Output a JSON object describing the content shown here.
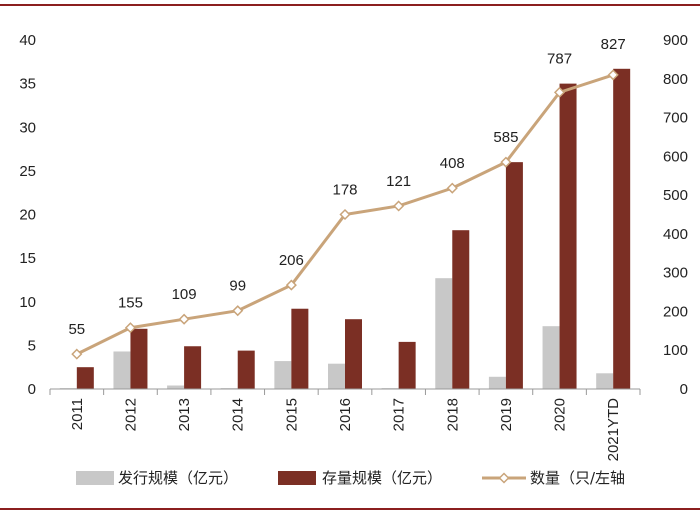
{
  "chart_data": {
    "type": "bar",
    "categories": [
      "2011",
      "2012",
      "2013",
      "2014",
      "2015",
      "2016",
      "2017",
      "2018",
      "2019",
      "2020",
      "2021YTD"
    ],
    "series": [
      {
        "name": "发行规模（亿元）",
        "type": "bar",
        "axis": "left",
        "color": "#c8c8c8",
        "values": [
          0.1,
          4.3,
          0.4,
          0.1,
          3.2,
          2.9,
          0.1,
          12.7,
          1.4,
          7.2,
          1.8
        ]
      },
      {
        "name": "存量规模（亿元）",
        "type": "bar",
        "axis": "left",
        "color": "#7b2f24",
        "values": [
          2.5,
          6.9,
          4.9,
          4.4,
          9.2,
          8.0,
          5.4,
          18.2,
          26.0,
          35.0,
          36.7
        ]
      },
      {
        "name": "数量（只/左轴",
        "type": "line",
        "axis": "right",
        "color": "#c9a47a",
        "values": [
          90,
          158,
          180,
          202,
          268,
          450,
          472,
          518,
          585,
          765,
          810
        ]
      }
    ],
    "data_labels": [
      "55",
      "155",
      "109",
      "99",
      "206",
      "178",
      "121",
      "408",
      "585",
      "787",
      "827"
    ],
    "y_left": {
      "min": 0,
      "max": 40,
      "ticks": [
        "0",
        "5",
        "10",
        "15",
        "20",
        "25",
        "30",
        "35",
        "40"
      ]
    },
    "y_right": {
      "min": 0,
      "max": 900,
      "ticks": [
        "0",
        "100",
        "200",
        "300",
        "400",
        "500",
        "600",
        "700",
        "800",
        "900"
      ]
    },
    "legend_position": "bottom",
    "grid": false
  }
}
